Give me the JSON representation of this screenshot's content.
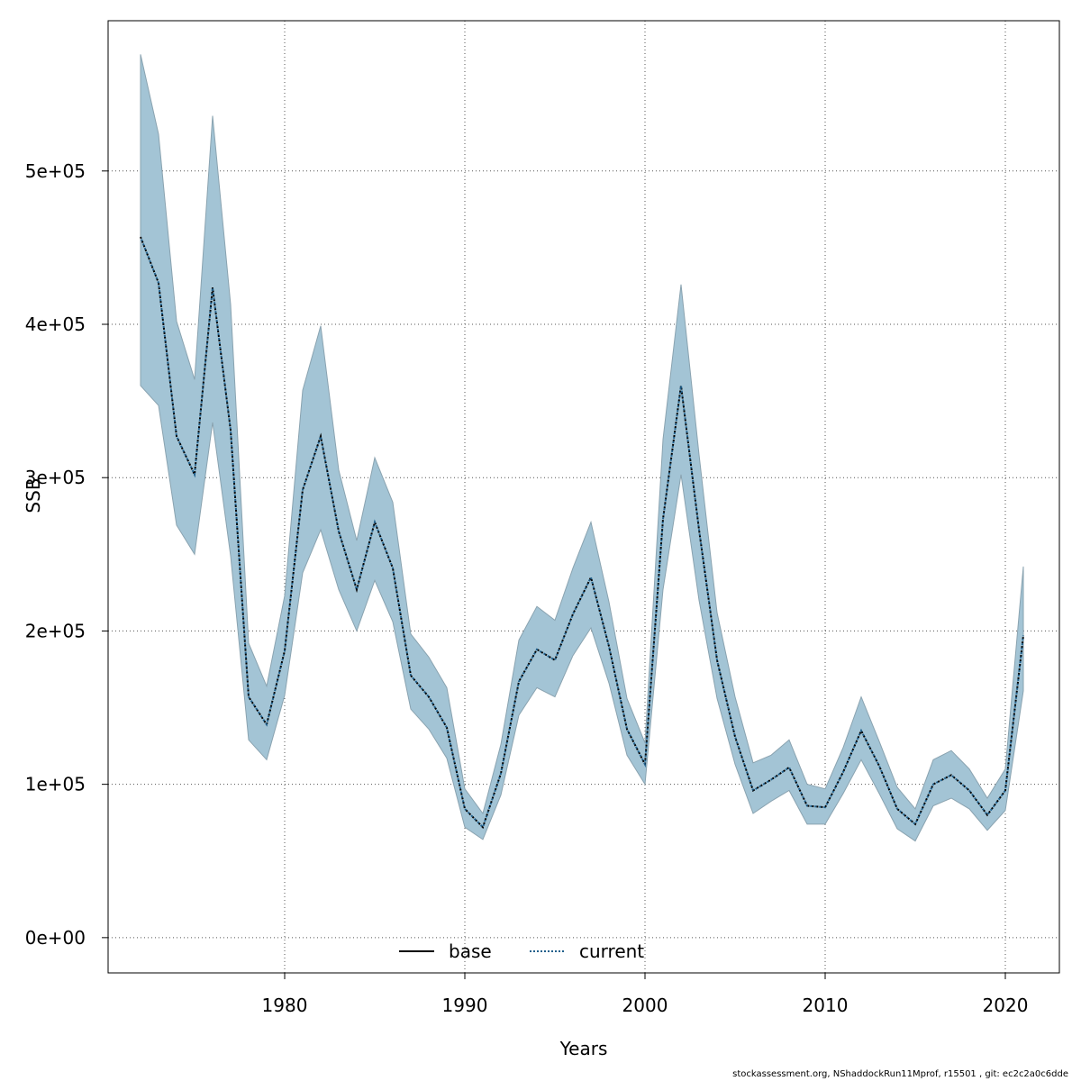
{
  "chart_data": {
    "type": "line",
    "title": "",
    "xlabel": "Years",
    "ylabel": "SSB",
    "xlim": [
      1970.2,
      2023.0
    ],
    "ylim": [
      -23000,
      598000
    ],
    "x_ticks": [
      1980,
      1990,
      2000,
      2010,
      2020
    ],
    "x_tick_labels": [
      "1980",
      "1990",
      "2000",
      "2010",
      "2020"
    ],
    "y_ticks": [
      0,
      100000,
      200000,
      300000,
      400000,
      500000
    ],
    "y_tick_labels": [
      "0e+00",
      "1e+05",
      "2e+05",
      "3e+05",
      "4e+05",
      "5e+05"
    ],
    "grid": true,
    "legend_position": "bottom-center",
    "band_color": "#a3c4d5",
    "band_edge_color": "#8aa3b0",
    "x": [
      1972,
      1973,
      1974,
      1975,
      1976,
      1977,
      1978,
      1979,
      1980,
      1981,
      1982,
      1983,
      1984,
      1985,
      1986,
      1987,
      1988,
      1989,
      1990,
      1991,
      1992,
      1993,
      1994,
      1995,
      1996,
      1997,
      1998,
      1999,
      2000,
      2001,
      2002,
      2003,
      2004,
      2005,
      2006,
      2007,
      2008,
      2009,
      2010,
      2011,
      2012,
      2013,
      2014,
      2015,
      2016,
      2017,
      2018,
      2019,
      2020,
      2021
    ],
    "series": [
      {
        "name": "base",
        "color": "#000000",
        "line_style": "solid",
        "values": [
          457000,
          427000,
          327000,
          302000,
          424000,
          331000,
          157000,
          139000,
          187000,
          292000,
          327000,
          265000,
          227000,
          271000,
          241000,
          171000,
          157000,
          137000,
          84000,
          72000,
          107000,
          167000,
          188000,
          181000,
          211000,
          235000,
          190000,
          136000,
          113000,
          273000,
          360000,
          266000,
          181000,
          131000,
          96000,
          103000,
          111000,
          86000,
          85000,
          108000,
          135000,
          112000,
          84000,
          74000,
          100000,
          106000,
          96000,
          80000,
          96000,
          197000
        ]
      },
      {
        "name": "current",
        "color": "#1f5f8b",
        "line_style": "dotted",
        "values": [
          457000,
          427000,
          327000,
          302000,
          424000,
          331000,
          157000,
          139000,
          187000,
          292000,
          327000,
          265000,
          227000,
          271000,
          241000,
          171000,
          157000,
          137000,
          84000,
          72000,
          107000,
          167000,
          188000,
          181000,
          211000,
          235000,
          190000,
          136000,
          113000,
          273000,
          360000,
          266000,
          181000,
          131000,
          96000,
          103000,
          111000,
          86000,
          85000,
          108000,
          135000,
          112000,
          84000,
          74000,
          100000,
          106000,
          96000,
          80000,
          96000,
          197000
        ],
        "lower": [
          360000,
          347000,
          269000,
          250000,
          336000,
          249000,
          129000,
          116000,
          158000,
          238000,
          266000,
          227000,
          200000,
          233000,
          206000,
          149000,
          136000,
          117000,
          72000,
          64000,
          93000,
          145000,
          163000,
          157000,
          184000,
          202000,
          166000,
          119000,
          100000,
          227000,
          302000,
          220000,
          156000,
          113000,
          81000,
          89000,
          96000,
          74000,
          74000,
          94000,
          116000,
          94000,
          71000,
          63000,
          86000,
          91000,
          84000,
          70000,
          83000,
          161000
        ],
        "upper": [
          576000,
          524000,
          402000,
          364000,
          536000,
          413000,
          192000,
          164000,
          223000,
          357000,
          399000,
          305000,
          259000,
          313000,
          284000,
          198000,
          183000,
          163000,
          97000,
          81000,
          126000,
          194000,
          216000,
          207000,
          241000,
          271000,
          219000,
          156000,
          127000,
          325000,
          426000,
          315000,
          212000,
          157000,
          114000,
          119000,
          129000,
          100000,
          97000,
          124000,
          157000,
          128000,
          98000,
          84000,
          116000,
          122000,
          110000,
          91000,
          110000,
          242000
        ]
      }
    ]
  },
  "footer_text": "stockassessment.org, NShaddockRun11Mprof, r15501 , git: ec2c2a0c6dde"
}
